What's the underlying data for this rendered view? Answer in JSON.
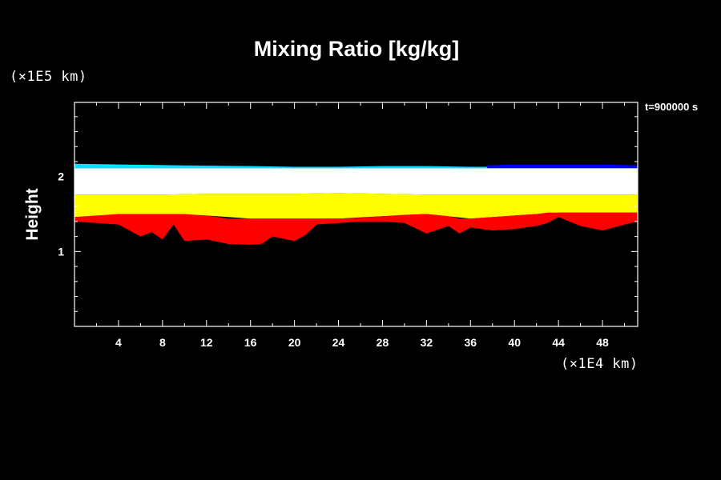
{
  "chart_data": {
    "type": "heatmap",
    "title": "Mixing Ratio [kg/kg]",
    "ylabel": "Height",
    "y_unit": "(×1E5 km)",
    "x_unit": "(×1E4 km)",
    "time_label": "t=900000 s",
    "xlim": [
      0,
      51.2
    ],
    "ylim": [
      0,
      2.99
    ],
    "x_ticks": [
      4,
      8,
      12,
      16,
      20,
      24,
      28,
      32,
      36,
      40,
      44,
      48
    ],
    "x_tick_labels": [
      "4",
      "8",
      "12",
      "16",
      "20",
      "24",
      "28",
      "32",
      "36",
      "40",
      "44",
      "48"
    ],
    "y_ticks": [
      1,
      2
    ],
    "y_tick_labels": [
      "1",
      "2"
    ],
    "colors": {
      "background": "#000000",
      "axes": "#ffffff",
      "cyan": "#00e5ff",
      "blue": "#0000ff",
      "white": "#ffffff",
      "yellow": "#ffff00",
      "red": "#ff0000"
    },
    "layers": [
      {
        "name": "cyan-band",
        "color": "#00e5ff",
        "x": [
          0,
          10,
          16,
          20,
          24,
          28,
          32,
          36,
          37.5,
          51.2
        ],
        "y_bottom": [
          2.11,
          2.11,
          2.11,
          2.11,
          2.11,
          2.11,
          2.11,
          2.11,
          2.11,
          2.11
        ],
        "y_top": [
          2.17,
          2.15,
          2.14,
          2.13,
          2.13,
          2.14,
          2.14,
          2.13,
          2.13,
          2.13
        ]
      },
      {
        "name": "blue-band",
        "color": "#0000ff",
        "x": [
          37.5,
          40,
          44,
          48,
          51.2
        ],
        "y_bottom": [
          2.11,
          2.11,
          2.11,
          2.11,
          2.11
        ],
        "y_top": [
          2.15,
          2.16,
          2.16,
          2.16,
          2.15
        ]
      },
      {
        "name": "white-band",
        "color": "#ffffff",
        "x": [
          0,
          4,
          8,
          12,
          16,
          20,
          24,
          28,
          32,
          36,
          40,
          44,
          48,
          51.2
        ],
        "y_bottom": [
          1.76,
          1.76,
          1.76,
          1.77,
          1.77,
          1.77,
          1.78,
          1.77,
          1.76,
          1.76,
          1.76,
          1.76,
          1.76,
          1.76
        ],
        "y_top": [
          2.11,
          2.11,
          2.11,
          2.11,
          2.11,
          2.11,
          2.11,
          2.11,
          2.11,
          2.11,
          2.11,
          2.11,
          2.11,
          2.11
        ]
      },
      {
        "name": "yellow-band",
        "color": "#ffff00",
        "x": [
          0,
          4,
          8,
          12,
          16,
          20,
          24,
          28,
          32,
          36,
          40,
          44,
          48,
          51.2
        ],
        "y_bottom": [
          1.46,
          1.48,
          1.5,
          1.48,
          1.44,
          1.44,
          1.44,
          1.47,
          1.5,
          1.44,
          1.48,
          1.52,
          1.52,
          1.52
        ],
        "y_top": [
          1.76,
          1.76,
          1.76,
          1.77,
          1.77,
          1.77,
          1.78,
          1.77,
          1.76,
          1.76,
          1.76,
          1.76,
          1.76,
          1.76
        ]
      },
      {
        "name": "red-band",
        "color": "#ff0000",
        "x": [
          0,
          2,
          4,
          6,
          7,
          8,
          9,
          10,
          12,
          14,
          16,
          17,
          18,
          20,
          21,
          22,
          24,
          26,
          28,
          30,
          32,
          34,
          35,
          36,
          38,
          40,
          42,
          43,
          44,
          46,
          48,
          50,
          51.2
        ],
        "y_bottom": [
          1.4,
          1.38,
          1.36,
          1.2,
          1.26,
          1.16,
          1.36,
          1.14,
          1.16,
          1.1,
          1.09,
          1.1,
          1.2,
          1.14,
          1.22,
          1.36,
          1.38,
          1.4,
          1.4,
          1.38,
          1.24,
          1.34,
          1.24,
          1.32,
          1.28,
          1.3,
          1.34,
          1.38,
          1.46,
          1.34,
          1.28,
          1.36,
          1.4
        ],
        "y_top": [
          1.46,
          1.48,
          1.5,
          1.5,
          1.5,
          1.5,
          1.5,
          1.5,
          1.48,
          1.44,
          1.44,
          1.44,
          1.44,
          1.44,
          1.44,
          1.44,
          1.44,
          1.45,
          1.47,
          1.49,
          1.5,
          1.47,
          1.44,
          1.44,
          1.46,
          1.48,
          1.5,
          1.52,
          1.52,
          1.52,
          1.52,
          1.52,
          1.52
        ]
      }
    ]
  }
}
